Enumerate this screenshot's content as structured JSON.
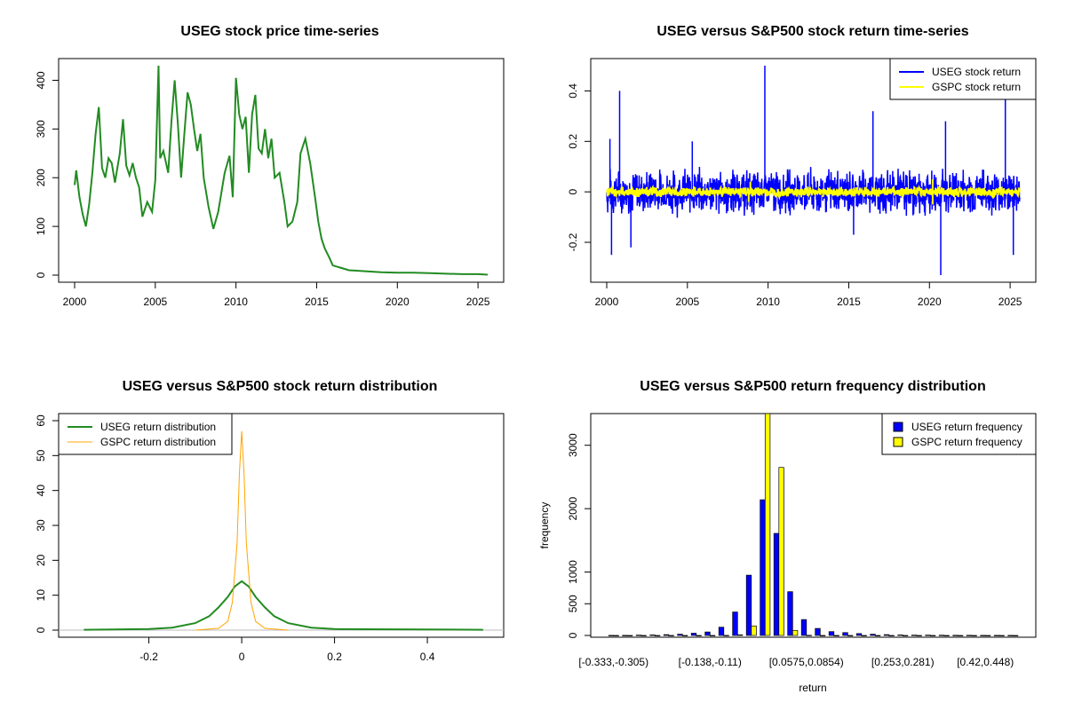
{
  "chart_data": [
    {
      "type": "line",
      "title": "USEG stock price time-series",
      "xlabel": "",
      "ylabel": "",
      "xlim": [
        2000,
        2025.6
      ],
      "ylim": [
        0,
        430
      ],
      "xticks": [
        2000,
        2005,
        2010,
        2015,
        2020,
        2025
      ],
      "yticks": [
        0,
        100,
        200,
        300,
        400
      ],
      "color": "#228b22",
      "series": [
        {
          "x": [
            2000.0,
            2000.1,
            2000.3,
            2000.5,
            2000.7,
            2000.9,
            2001.1,
            2001.3,
            2001.5,
            2001.7,
            2001.9,
            2002.1,
            2002.3,
            2002.5,
            2002.8,
            2003.0,
            2003.2,
            2003.4,
            2003.6,
            2003.8,
            2004.0,
            2004.2,
            2004.5,
            2004.8,
            2005.0,
            2005.2,
            2005.3,
            2005.5,
            2005.8,
            2006.0,
            2006.2,
            2006.4,
            2006.6,
            2006.8,
            2007.0,
            2007.2,
            2007.4,
            2007.6,
            2007.8,
            2008.0,
            2008.3,
            2008.6,
            2008.9,
            2009.1,
            2009.3,
            2009.6,
            2009.8,
            2010.0,
            2010.2,
            2010.4,
            2010.6,
            2010.8,
            2011.0,
            2011.2,
            2011.4,
            2011.6,
            2011.8,
            2012.0,
            2012.2,
            2012.4,
            2012.7,
            2013.0,
            2013.2,
            2013.5,
            2013.8,
            2014.0,
            2014.3,
            2014.6,
            2014.9,
            2015.1,
            2015.3,
            2015.5,
            2015.8,
            2016.0,
            2016.5,
            2017.0,
            2017.5,
            2018.0,
            2019.0,
            2020.0,
            2021.0,
            2022.0,
            2023.0,
            2024.0,
            2025.0,
            2025.6
          ],
          "y": [
            185,
            215,
            160,
            125,
            100,
            145,
            210,
            290,
            345,
            220,
            200,
            240,
            230,
            190,
            250,
            320,
            225,
            205,
            230,
            200,
            180,
            120,
            150,
            130,
            195,
            430,
            240,
            255,
            210,
            315,
            400,
            310,
            200,
            290,
            375,
            350,
            300,
            255,
            290,
            200,
            140,
            95,
            130,
            170,
            210,
            245,
            160,
            405,
            330,
            300,
            325,
            210,
            330,
            370,
            260,
            250,
            300,
            240,
            280,
            200,
            210,
            150,
            100,
            110,
            150,
            250,
            280,
            230,
            160,
            110,
            75,
            55,
            35,
            20,
            15,
            10,
            9,
            8,
            6,
            5,
            5,
            4,
            3,
            2,
            2,
            1
          ]
        }
      ]
    },
    {
      "type": "line",
      "title": "USEG versus S&P500 stock return time-series",
      "xlabel": "",
      "ylabel": "",
      "xlim": [
        2000,
        2025.6
      ],
      "ylim": [
        -0.33,
        0.5
      ],
      "xticks": [
        2000,
        2005,
        2010,
        2015,
        2020,
        2025
      ],
      "yticks": [
        -0.2,
        0.0,
        0.2,
        0.4
      ],
      "legend_position": "top-right",
      "series": [
        {
          "name": "USEG stock return",
          "color": "#0000ff",
          "band": 0.07,
          "spikes": [
            [
              2000.2,
              0.21
            ],
            [
              2000.3,
              -0.25
            ],
            [
              2000.8,
              0.4
            ],
            [
              2001.5,
              -0.22
            ],
            [
              2005.3,
              0.2
            ],
            [
              2009.8,
              0.5
            ],
            [
              2015.3,
              -0.17
            ],
            [
              2016.5,
              0.32
            ],
            [
              2020.7,
              -0.33
            ],
            [
              2021.0,
              0.28
            ],
            [
              2024.7,
              0.38
            ],
            [
              2025.2,
              -0.25
            ]
          ]
        },
        {
          "name": "GSPC stock return",
          "color": "#ffff00",
          "band": 0.015,
          "spikes": [
            [
              2008.9,
              0.04
            ],
            [
              2008.8,
              -0.04
            ],
            [
              2020.2,
              0.05
            ],
            [
              2020.2,
              -0.05
            ]
          ]
        }
      ]
    },
    {
      "type": "line",
      "title": "USEG versus S&P500 stock return distribution",
      "xlabel": "",
      "ylabel": "",
      "xlim": [
        -0.36,
        0.53
      ],
      "ylim": [
        0,
        60
      ],
      "xticks": [
        -0.2,
        0.0,
        0.2,
        0.4
      ],
      "yticks": [
        0,
        10,
        20,
        30,
        40,
        50,
        60
      ],
      "legend_position": "top-left",
      "series": [
        {
          "name": "USEG return distribution",
          "color": "#228b22",
          "x": [
            -0.34,
            -0.2,
            -0.15,
            -0.1,
            -0.07,
            -0.05,
            -0.03,
            -0.015,
            0.0,
            0.015,
            0.03,
            0.05,
            0.07,
            0.1,
            0.15,
            0.2,
            0.52
          ],
          "y": [
            0.1,
            0.3,
            0.7,
            2.0,
            4.0,
            6.5,
            9.5,
            12.5,
            14.0,
            12.5,
            9.5,
            6.5,
            4.0,
            2.0,
            0.7,
            0.3,
            0.1
          ]
        },
        {
          "name": "GSPC return distribution",
          "color": "#ffa500",
          "x": [
            -0.1,
            -0.05,
            -0.03,
            -0.02,
            -0.01,
            -0.005,
            0.0,
            0.005,
            0.01,
            0.02,
            0.03,
            0.05,
            0.1
          ],
          "y": [
            0,
            0.5,
            2.5,
            8.0,
            25.0,
            45.0,
            57.0,
            45.0,
            25.0,
            8.0,
            2.5,
            0.5,
            0
          ]
        }
      ]
    },
    {
      "type": "bar",
      "title": "USEG versus S&P500 return frequency distribution",
      "xlabel": "return",
      "ylabel": "frequency",
      "ylim": [
        0,
        3500
      ],
      "yticks": [
        0,
        500,
        1000,
        2000,
        3000
      ],
      "legend_position": "top-right",
      "tick_labels": [
        "[-0.333,-0.305)",
        "[-0.138,-0.11)",
        "[0.0575,0.0854)",
        "[0.253,0.281)",
        "[0.42,0.448)"
      ],
      "tick_positions": [
        0,
        7,
        14,
        21,
        27
      ],
      "n_bins": 30,
      "series": [
        {
          "name": "USEG return frequency",
          "color": "#0000ff",
          "values": [
            2,
            2,
            5,
            8,
            12,
            20,
            35,
            55,
            130,
            370,
            950,
            2140,
            1610,
            690,
            250,
            110,
            60,
            45,
            30,
            20,
            12,
            8,
            6,
            5,
            4,
            3,
            3,
            2,
            2,
            1
          ]
        },
        {
          "name": "GSPC return frequency",
          "color": "#ffff00",
          "values": [
            0,
            0,
            0,
            0,
            0,
            0,
            0,
            0,
            2,
            10,
            150,
            3500,
            2650,
            80,
            3,
            0,
            0,
            0,
            0,
            0,
            0,
            0,
            0,
            0,
            0,
            0,
            0,
            0,
            0,
            0
          ]
        }
      ]
    }
  ]
}
